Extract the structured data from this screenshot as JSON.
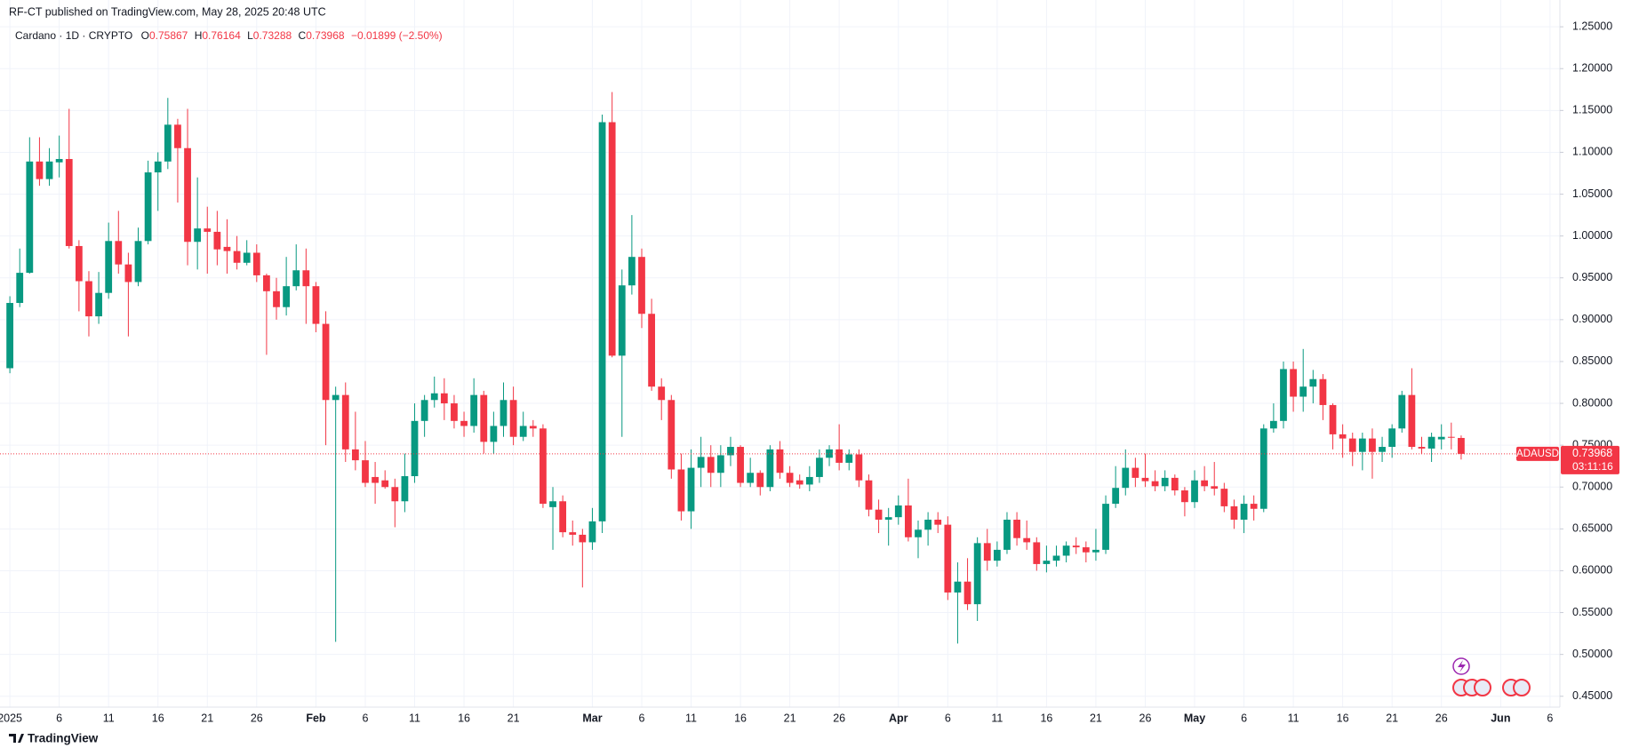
{
  "header": {
    "publisher": "RF-CT published on TradingView.com, May 28, 2025 20:48 UTC",
    "symbol": "Cardano · 1D · CRYPTO",
    "ohlc_letters": [
      "O",
      "H",
      "L",
      "C"
    ],
    "change": "−0.01899 (−2.50%)"
  },
  "price_label": {
    "ticker": "ADAUSD",
    "countdown": "03:11:16"
  },
  "footer": "TradingView",
  "chart_data": {
    "type": "candlestick",
    "up_color": "#089981",
    "down_color": "#f23645",
    "grid": true,
    "x": [
      "2025-01-01",
      "2025-01-02",
      "2025-01-03",
      "2025-01-04",
      "2025-01-05",
      "2025-01-06",
      "2025-01-07",
      "2025-01-08",
      "2025-01-09",
      "2025-01-10",
      "2025-01-11",
      "2025-01-12",
      "2025-01-13",
      "2025-01-14",
      "2025-01-15",
      "2025-01-16",
      "2025-01-17",
      "2025-01-18",
      "2025-01-19",
      "2025-01-20",
      "2025-01-21",
      "2025-01-22",
      "2025-01-23",
      "2025-01-24",
      "2025-01-25",
      "2025-01-26",
      "2025-01-27",
      "2025-01-28",
      "2025-01-29",
      "2025-01-30",
      "2025-01-31",
      "2025-02-01",
      "2025-02-02",
      "2025-02-03",
      "2025-02-04",
      "2025-02-05",
      "2025-02-06",
      "2025-02-07",
      "2025-02-08",
      "2025-02-09",
      "2025-02-10",
      "2025-02-11",
      "2025-02-12",
      "2025-02-13",
      "2025-02-14",
      "2025-02-15",
      "2025-02-16",
      "2025-02-17",
      "2025-02-18",
      "2025-02-19",
      "2025-02-20",
      "2025-02-21",
      "2025-02-22",
      "2025-02-23",
      "2025-02-24",
      "2025-02-25",
      "2025-02-26",
      "2025-02-27",
      "2025-02-28",
      "2025-03-01",
      "2025-03-02",
      "2025-03-03",
      "2025-03-04",
      "2025-03-05",
      "2025-03-06",
      "2025-03-07",
      "2025-03-08",
      "2025-03-09",
      "2025-03-10",
      "2025-03-11",
      "2025-03-12",
      "2025-03-13",
      "2025-03-14",
      "2025-03-15",
      "2025-03-16",
      "2025-03-17",
      "2025-03-18",
      "2025-03-19",
      "2025-03-20",
      "2025-03-21",
      "2025-03-22",
      "2025-03-23",
      "2025-03-24",
      "2025-03-25",
      "2025-03-26",
      "2025-03-27",
      "2025-03-28",
      "2025-03-29",
      "2025-03-30",
      "2025-03-31",
      "2025-04-01",
      "2025-04-02",
      "2025-04-03",
      "2025-04-04",
      "2025-04-05",
      "2025-04-06",
      "2025-04-07",
      "2025-04-08",
      "2025-04-09",
      "2025-04-10",
      "2025-04-11",
      "2025-04-12",
      "2025-04-13",
      "2025-04-14",
      "2025-04-15",
      "2025-04-16",
      "2025-04-17",
      "2025-04-18",
      "2025-04-19",
      "2025-04-20",
      "2025-04-21",
      "2025-04-22",
      "2025-04-23",
      "2025-04-24",
      "2025-04-25",
      "2025-04-26",
      "2025-04-27",
      "2025-04-28",
      "2025-04-29",
      "2025-04-30",
      "2025-05-01",
      "2025-05-02",
      "2025-05-03",
      "2025-05-04",
      "2025-05-05",
      "2025-05-06",
      "2025-05-07",
      "2025-05-08",
      "2025-05-09",
      "2025-05-10",
      "2025-05-11",
      "2025-05-12",
      "2025-05-13",
      "2025-05-14",
      "2025-05-15",
      "2025-05-16",
      "2025-05-17",
      "2025-05-18",
      "2025-05-19",
      "2025-05-20",
      "2025-05-21",
      "2025-05-22",
      "2025-05-23",
      "2025-05-24",
      "2025-05-25",
      "2025-05-26",
      "2025-05-27",
      "2025-05-28"
    ],
    "open": [
      0.842,
      0.92,
      0.956,
      1.089,
      1.068,
      1.088,
      1.092,
      0.988,
      0.946,
      0.904,
      0.932,
      0.994,
      0.966,
      0.945,
      0.994,
      1.076,
      1.089,
      1.133,
      1.105,
      0.993,
      1.009,
      1.005,
      0.987,
      0.982,
      0.968,
      0.98,
      0.953,
      0.934,
      0.915,
      0.94,
      0.959,
      0.94,
      0.895,
      0.804,
      0.81,
      0.745,
      0.732,
      0.712,
      0.708,
      0.7,
      0.683,
      0.713,
      0.779,
      0.804,
      0.812,
      0.8,
      0.779,
      0.773,
      0.81,
      0.754,
      0.773,
      0.804,
      0.76,
      0.773,
      0.77,
      0.676,
      0.683,
      0.646,
      0.643,
      0.634,
      0.659,
      1.136,
      0.857,
      0.941,
      0.975,
      0.907,
      0.82,
      0.804,
      0.721,
      0.671,
      0.723,
      0.736,
      0.717,
      0.738,
      0.748,
      0.705,
      0.717,
      0.7,
      0.745,
      0.717,
      0.708,
      0.703,
      0.712,
      0.735,
      0.745,
      0.729,
      0.739,
      0.708,
      0.673,
      0.661,
      0.664,
      0.678,
      0.64,
      0.649,
      0.661,
      0.655,
      0.574,
      0.587,
      0.56,
      0.633,
      0.612,
      0.625,
      0.661,
      0.639,
      0.634,
      0.608,
      0.612,
      0.618,
      0.63,
      0.628,
      0.622,
      0.625,
      0.68,
      0.699,
      0.723,
      0.711,
      0.707,
      0.701,
      0.711,
      0.696,
      0.682,
      0.708,
      0.701,
      0.698,
      0.677,
      0.661,
      0.68,
      0.674,
      0.77,
      0.779,
      0.841,
      0.808,
      0.82,
      0.829,
      0.798,
      0.763,
      0.758,
      0.742,
      0.758,
      0.742,
      0.748,
      0.77,
      0.81,
      0.748,
      0.746,
      0.757,
      0.76,
      0.75867
    ],
    "high": [
      0.928,
      0.985,
      1.118,
      1.118,
      1.105,
      1.12,
      1.152,
      0.995,
      0.958,
      0.957,
      1.016,
      1.03,
      0.98,
      1.01,
      1.09,
      1.1,
      1.165,
      1.14,
      1.152,
      1.07,
      1.035,
      1.03,
      1.02,
      1.0,
      0.995,
      0.99,
      0.955,
      0.95,
      0.975,
      0.99,
      0.985,
      0.945,
      0.91,
      0.82,
      0.825,
      0.79,
      0.755,
      0.73,
      0.72,
      0.71,
      0.74,
      0.8,
      0.81,
      0.832,
      0.83,
      0.81,
      0.79,
      0.83,
      0.815,
      0.79,
      0.825,
      0.82,
      0.79,
      0.78,
      0.775,
      0.7,
      0.69,
      0.66,
      0.65,
      0.675,
      1.145,
      1.172,
      0.96,
      1.025,
      0.985,
      0.925,
      0.83,
      0.81,
      0.74,
      0.745,
      0.76,
      0.75,
      0.75,
      0.76,
      0.75,
      0.735,
      0.72,
      0.75,
      0.755,
      0.725,
      0.715,
      0.725,
      0.745,
      0.75,
      0.775,
      0.745,
      0.745,
      0.715,
      0.685,
      0.675,
      0.69,
      0.71,
      0.66,
      0.67,
      0.67,
      0.665,
      0.61,
      0.615,
      0.64,
      0.65,
      0.635,
      0.67,
      0.67,
      0.66,
      0.64,
      0.63,
      0.63,
      0.635,
      0.64,
      0.635,
      0.65,
      0.69,
      0.725,
      0.745,
      0.735,
      0.74,
      0.72,
      0.72,
      0.715,
      0.7,
      0.72,
      0.725,
      0.73,
      0.705,
      0.685,
      0.69,
      0.69,
      0.775,
      0.8,
      0.85,
      0.85,
      0.865,
      0.84,
      0.835,
      0.8,
      0.775,
      0.765,
      0.765,
      0.77,
      0.76,
      0.775,
      0.815,
      0.842,
      0.76,
      0.765,
      0.775,
      0.777,
      0.76164
    ],
    "low": [
      0.836,
      0.915,
      0.955,
      1.06,
      1.06,
      1.07,
      0.985,
      0.91,
      0.88,
      0.895,
      0.925,
      0.955,
      0.88,
      0.94,
      0.99,
      1.03,
      1.08,
      1.04,
      0.965,
      0.96,
      0.955,
      0.965,
      0.955,
      0.96,
      0.965,
      0.945,
      0.858,
      0.9,
      0.905,
      0.935,
      0.895,
      0.885,
      0.75,
      0.515,
      0.73,
      0.72,
      0.7,
      0.68,
      0.698,
      0.652,
      0.67,
      0.705,
      0.76,
      0.795,
      0.78,
      0.77,
      0.76,
      0.765,
      0.74,
      0.74,
      0.76,
      0.75,
      0.755,
      0.76,
      0.675,
      0.625,
      0.64,
      0.63,
      0.58,
      0.625,
      0.645,
      0.855,
      0.76,
      0.93,
      0.89,
      0.815,
      0.78,
      0.71,
      0.66,
      0.65,
      0.7,
      0.7,
      0.7,
      0.725,
      0.7,
      0.7,
      0.69,
      0.695,
      0.71,
      0.7,
      0.698,
      0.695,
      0.705,
      0.725,
      0.72,
      0.72,
      0.7,
      0.665,
      0.645,
      0.63,
      0.655,
      0.635,
      0.615,
      0.63,
      0.645,
      0.565,
      0.513,
      0.553,
      0.54,
      0.6,
      0.605,
      0.62,
      0.63,
      0.625,
      0.6,
      0.598,
      0.605,
      0.61,
      0.62,
      0.61,
      0.612,
      0.62,
      0.675,
      0.69,
      0.7,
      0.7,
      0.695,
      0.695,
      0.69,
      0.665,
      0.675,
      0.695,
      0.69,
      0.67,
      0.65,
      0.645,
      0.66,
      0.67,
      0.765,
      0.77,
      0.79,
      0.79,
      0.8,
      0.78,
      0.745,
      0.735,
      0.725,
      0.72,
      0.71,
      0.73,
      0.735,
      0.765,
      0.745,
      0.74,
      0.73,
      0.745,
      0.745,
      0.73288
    ],
    "close": [
      0.92,
      0.956,
      1.089,
      1.068,
      1.089,
      1.092,
      0.988,
      0.946,
      0.904,
      0.932,
      0.994,
      0.966,
      0.945,
      0.994,
      1.076,
      1.089,
      1.133,
      1.105,
      0.993,
      1.009,
      1.005,
      0.984,
      0.982,
      0.968,
      0.98,
      0.953,
      0.934,
      0.915,
      0.94,
      0.959,
      0.94,
      0.895,
      0.804,
      0.81,
      0.745,
      0.732,
      0.705,
      0.705,
      0.7,
      0.683,
      0.713,
      0.779,
      0.804,
      0.812,
      0.8,
      0.779,
      0.773,
      0.81,
      0.754,
      0.773,
      0.804,
      0.76,
      0.773,
      0.77,
      0.68,
      0.683,
      0.646,
      0.643,
      0.634,
      0.659,
      1.136,
      0.857,
      0.941,
      0.975,
      0.907,
      0.82,
      0.804,
      0.721,
      0.671,
      0.723,
      0.736,
      0.717,
      0.738,
      0.748,
      0.705,
      0.717,
      0.7,
      0.745,
      0.717,
      0.705,
      0.703,
      0.712,
      0.735,
      0.745,
      0.729,
      0.739,
      0.708,
      0.673,
      0.661,
      0.664,
      0.678,
      0.64,
      0.649,
      0.661,
      0.655,
      0.574,
      0.587,
      0.56,
      0.633,
      0.612,
      0.625,
      0.661,
      0.639,
      0.634,
      0.608,
      0.612,
      0.618,
      0.63,
      0.628,
      0.622,
      0.625,
      0.68,
      0.699,
      0.723,
      0.711,
      0.707,
      0.701,
      0.711,
      0.696,
      0.682,
      0.708,
      0.701,
      0.698,
      0.677,
      0.661,
      0.68,
      0.674,
      0.77,
      0.779,
      0.841,
      0.808,
      0.82,
      0.829,
      0.798,
      0.763,
      0.758,
      0.742,
      0.758,
      0.742,
      0.748,
      0.77,
      0.81,
      0.748,
      0.746,
      0.76,
      0.76,
      0.759,
      0.73968
    ],
    "xlim": [
      "2024-12-31",
      "2025-06-07"
    ],
    "xticks": [
      {
        "value": "2025-01-01",
        "label": "2025"
      },
      {
        "value": "2025-01-06",
        "label": "6"
      },
      {
        "value": "2025-01-11",
        "label": "11"
      },
      {
        "value": "2025-01-16",
        "label": "16"
      },
      {
        "value": "2025-01-21",
        "label": "21"
      },
      {
        "value": "2025-01-26",
        "label": "26"
      },
      {
        "value": "2025-02-01",
        "label": "Feb"
      },
      {
        "value": "2025-02-06",
        "label": "6"
      },
      {
        "value": "2025-02-11",
        "label": "11"
      },
      {
        "value": "2025-02-16",
        "label": "16"
      },
      {
        "value": "2025-02-21",
        "label": "21"
      },
      {
        "value": "2025-03-01",
        "label": "Mar"
      },
      {
        "value": "2025-03-06",
        "label": "6"
      },
      {
        "value": "2025-03-11",
        "label": "11"
      },
      {
        "value": "2025-03-16",
        "label": "16"
      },
      {
        "value": "2025-03-21",
        "label": "21"
      },
      {
        "value": "2025-03-26",
        "label": "26"
      },
      {
        "value": "2025-04-01",
        "label": "Apr"
      },
      {
        "value": "2025-04-06",
        "label": "6"
      },
      {
        "value": "2025-04-11",
        "label": "11"
      },
      {
        "value": "2025-04-16",
        "label": "16"
      },
      {
        "value": "2025-04-21",
        "label": "21"
      },
      {
        "value": "2025-04-26",
        "label": "26"
      },
      {
        "value": "2025-05-01",
        "label": "May"
      },
      {
        "value": "2025-05-06",
        "label": "6"
      },
      {
        "value": "2025-05-11",
        "label": "11"
      },
      {
        "value": "2025-05-16",
        "label": "16"
      },
      {
        "value": "2025-05-21",
        "label": "21"
      },
      {
        "value": "2025-05-26",
        "label": "26"
      },
      {
        "value": "2025-06-01",
        "label": "Jun"
      },
      {
        "value": "2025-06-06",
        "label": "6"
      }
    ],
    "ylim": [
      0.437,
      1.282
    ],
    "yticks": [
      {
        "value": 0.45,
        "label": "0.45000"
      },
      {
        "value": 0.5,
        "label": "0.50000"
      },
      {
        "value": 0.55,
        "label": "0.55000"
      },
      {
        "value": 0.6,
        "label": "0.60000"
      },
      {
        "value": 0.65,
        "label": "0.65000"
      },
      {
        "value": 0.7,
        "label": "0.70000"
      },
      {
        "value": 0.75,
        "label": "0.75000"
      },
      {
        "value": 0.8,
        "label": "0.80000"
      },
      {
        "value": 0.85,
        "label": "0.85000"
      },
      {
        "value": 0.9,
        "label": "0.90000"
      },
      {
        "value": 0.95,
        "label": "0.95000"
      },
      {
        "value": 1.0,
        "label": "1.00000"
      },
      {
        "value": 1.05,
        "label": "1.05000"
      },
      {
        "value": 1.1,
        "label": "1.10000"
      },
      {
        "value": 1.15,
        "label": "1.15000"
      },
      {
        "value": 1.2,
        "label": "1.20000"
      },
      {
        "value": 1.25,
        "label": "1.25000"
      }
    ]
  }
}
